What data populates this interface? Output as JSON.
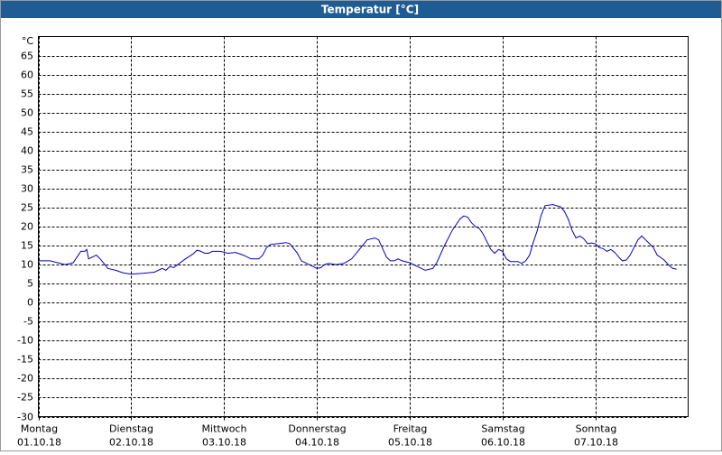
{
  "chart_data": {
    "type": "line",
    "title": "Temperatur [°C]",
    "y_unit": "°C",
    "x": [
      0,
      3,
      5,
      7,
      9,
      10,
      11,
      12,
      12.5,
      13,
      14,
      15,
      16,
      18,
      20,
      22,
      24,
      27,
      30,
      32,
      33,
      34,
      35,
      36,
      38,
      40,
      41,
      42,
      43,
      44,
      45,
      47,
      49,
      51,
      53,
      55,
      57,
      58,
      59,
      60,
      62,
      64,
      65,
      67,
      68,
      70,
      72,
      73,
      74,
      75,
      77,
      79,
      81,
      83,
      85,
      87,
      88,
      90,
      91,
      92,
      93,
      94,
      96,
      98,
      100,
      102,
      103,
      105,
      107,
      109,
      110,
      111,
      112,
      113,
      114,
      115,
      116,
      117,
      118,
      119,
      120,
      121,
      122,
      124,
      125,
      126,
      127,
      128,
      129,
      130,
      131,
      133,
      135,
      136,
      137,
      138,
      139,
      140,
      141,
      142,
      143,
      144,
      145,
      146,
      147,
      148,
      149,
      150,
      151,
      152,
      153,
      154,
      155,
      156,
      157,
      158,
      159,
      160,
      161,
      162,
      163,
      164,
      165
    ],
    "series": [
      {
        "color": "#0000c0",
        "values": [
          11,
          11,
          10.5,
          10,
          10.5,
          12,
          13.5,
          13.5,
          14,
          11.5,
          12,
          12.5,
          11.5,
          9,
          8.5,
          7.8,
          7.5,
          7.7,
          8,
          9,
          8.5,
          9.5,
          9.2,
          10,
          11.5,
          12.8,
          13.8,
          13.5,
          13,
          13,
          13.5,
          13.5,
          13,
          13.2,
          12.5,
          11.5,
          11.5,
          12.5,
          14.5,
          15.3,
          15.5,
          15.8,
          15.5,
          13,
          11,
          10,
          9,
          9.2,
          10,
          10.3,
          10,
          10.3,
          11.5,
          14,
          16.5,
          17,
          16.5,
          12,
          11,
          11,
          11.5,
          11,
          10.5,
          9.5,
          8.5,
          9,
          10.5,
          15,
          19,
          22,
          22.8,
          22.5,
          21,
          20,
          19.5,
          18,
          16,
          14,
          13,
          14,
          13.5,
          11.5,
          10.8,
          10.8,
          10.3,
          11,
          12.5,
          16,
          19,
          23,
          25.5,
          25.8,
          25.2,
          24,
          22,
          19,
          17,
          17.5,
          16.8,
          15.5,
          15.7,
          15.5,
          14.5,
          14.2,
          13.5,
          14,
          13.2,
          12,
          11,
          11.2,
          12.5,
          14.5,
          16.5,
          17.5,
          16.5,
          15.5,
          14.5,
          12.5,
          11.8,
          11,
          9.8,
          9,
          8.8
        ]
      }
    ],
    "xlim": [
      0,
      168
    ],
    "xticks": [
      {
        "value": 0,
        "label": "Montag",
        "date": "01.10.18"
      },
      {
        "value": 24,
        "label": "Dienstag",
        "date": "02.10.18"
      },
      {
        "value": 48,
        "label": "Mittwoch",
        "date": "03.10.18"
      },
      {
        "value": 72,
        "label": "Donnerstag",
        "date": "04.10.18"
      },
      {
        "value": 96,
        "label": "Freitag",
        "date": "05.10.18"
      },
      {
        "value": 120,
        "label": "Samstag",
        "date": "06.10.18"
      },
      {
        "value": 144,
        "label": "Sonntag",
        "date": "07.10.18"
      }
    ],
    "ylim": [
      -30,
      70
    ],
    "yticks": [
      -30,
      -25,
      -20,
      -15,
      -10,
      -5,
      0,
      5,
      10,
      15,
      20,
      25,
      30,
      35,
      40,
      45,
      50,
      55,
      60,
      65
    ],
    "grid": true
  }
}
